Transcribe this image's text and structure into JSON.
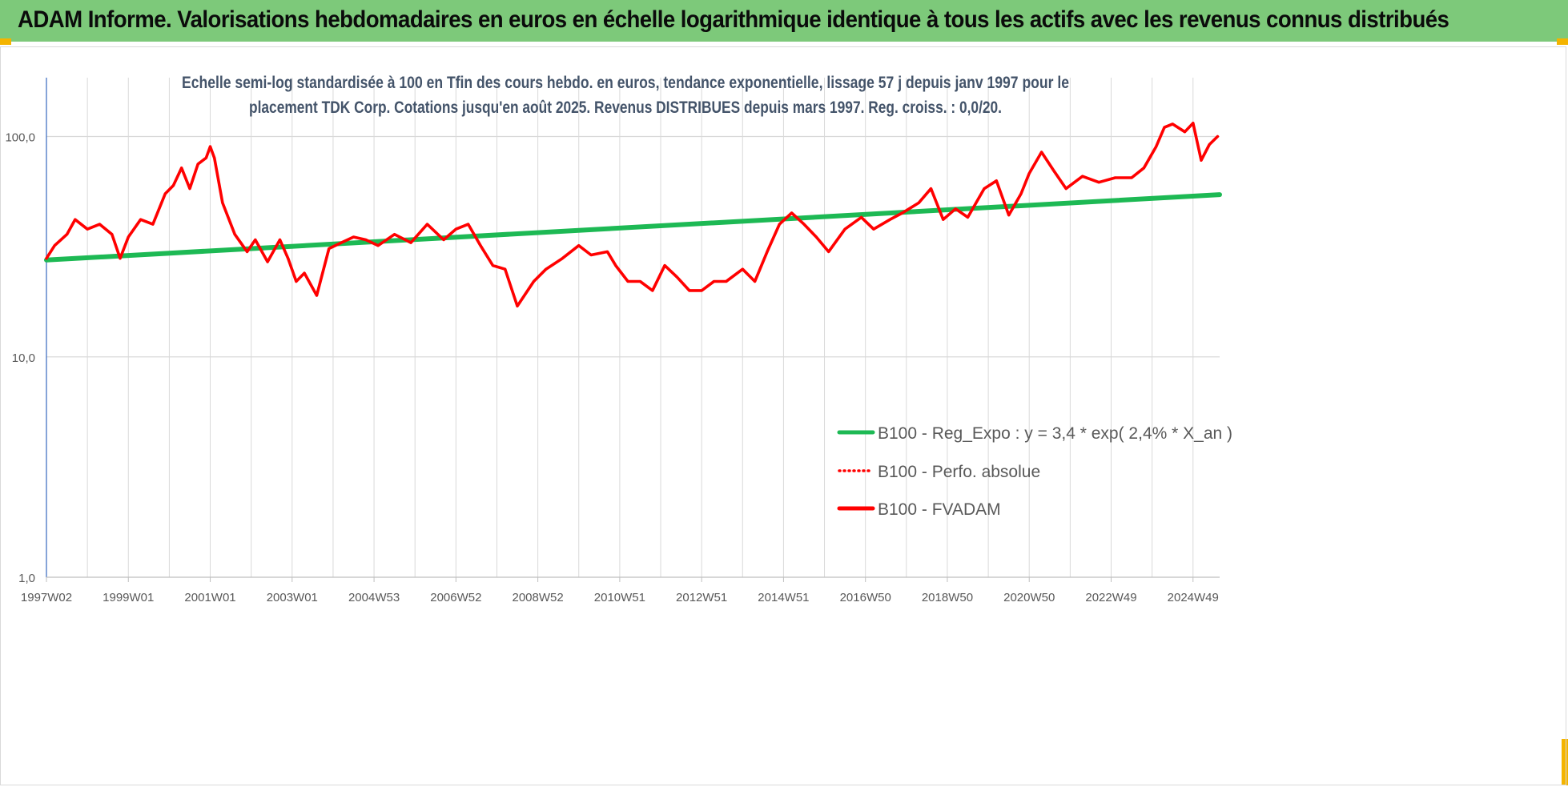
{
  "header": {
    "title": "ADAM Informe. Valorisations hebdomadaires en euros en échelle logarithmique identique à tous les actifs avec les revenus connus distribués"
  },
  "colors": {
    "banner": "#7dc97a",
    "corner_marks": "#f4b400",
    "trend": "#1db954",
    "fvadam": "#ff0000",
    "axis_text": "#595959",
    "grid": "#d9d9d9"
  },
  "chart_data": {
    "type": "line",
    "title_lines": [
      "Echelle semi-log standardisée à 100 en Tfin des cours hebdo. en euros, tendance exponentielle, lissage 57 j depuis janv 1997 pour le",
      "placement TDK Corp. Cotations jusqu'en août 2025. Revenus DISTRIBUES depuis mars 1997. Reg. croiss. : 0,0/20."
    ],
    "y_scale": "log",
    "ylim": [
      1,
      185
    ],
    "y_ticks": [
      1,
      10,
      100
    ],
    "y_tick_labels": [
      "1,0",
      "10,0",
      "100,0"
    ],
    "x_range": [
      1997.0,
      2025.65
    ],
    "x_ticks": [
      1997.0,
      1999.0,
      2001.0,
      2003.0,
      2005.0,
      2007.0,
      2009.0,
      2011.0,
      2013.0,
      2015.0,
      2017.0,
      2019.0,
      2021.0,
      2023.0,
      2025.0
    ],
    "x_tick_labels": [
      "1997W02",
      "1999W01",
      "2001W01",
      "2003W01",
      "2004W53",
      "2006W52",
      "2008W52",
      "2010W51",
      "2012W51",
      "2014W51",
      "2016W50",
      "2018W50",
      "2020W50",
      "2022W49",
      "2024W49"
    ],
    "grid": "vertical and horizontal",
    "legend_position": "lower-right",
    "series": [
      {
        "name": "B100 - Reg_Expo : y = 3,4 * exp( 2,4% *  X_an )",
        "style": "solid-thick",
        "color": "#1db954",
        "x": [
          1997.0,
          2025.65
        ],
        "y": [
          27.5,
          54.5
        ]
      },
      {
        "name": "B100 - Perfo. absolue",
        "style": "dotted",
        "color": "#ff0000",
        "x": [],
        "y": []
      },
      {
        "name": "B100 - FVADAM",
        "style": "solid-thick",
        "color": "#ff0000",
        "x": [
          1997.0,
          1997.2,
          1997.5,
          1997.7,
          1998.0,
          1998.3,
          1998.6,
          1998.8,
          1999.0,
          1999.3,
          1999.6,
          1999.9,
          2000.1,
          2000.3,
          2000.5,
          2000.7,
          2000.9,
          2001.0,
          2001.1,
          2001.3,
          2001.6,
          2001.9,
          2002.1,
          2002.4,
          2002.7,
          2002.9,
          2003.1,
          2003.3,
          2003.6,
          2003.9,
          2004.2,
          2004.5,
          2004.8,
          2005.1,
          2005.5,
          2005.9,
          2006.3,
          2006.7,
          2007.0,
          2007.3,
          2007.6,
          2007.9,
          2008.2,
          2008.5,
          2008.9,
          2009.2,
          2009.6,
          2010.0,
          2010.3,
          2010.7,
          2010.9,
          2011.2,
          2011.5,
          2011.8,
          2012.1,
          2012.4,
          2012.7,
          2013.0,
          2013.3,
          2013.6,
          2014.0,
          2014.3,
          2014.6,
          2014.9,
          2015.2,
          2015.5,
          2015.8,
          2016.1,
          2016.5,
          2016.9,
          2017.2,
          2017.6,
          2017.9,
          2018.3,
          2018.6,
          2018.9,
          2019.2,
          2019.5,
          2019.9,
          2020.2,
          2020.5,
          2020.8,
          2021.0,
          2021.3,
          2021.6,
          2021.9,
          2022.3,
          2022.7,
          2023.1,
          2023.5,
          2023.8,
          2024.1,
          2024.3,
          2024.5,
          2024.8,
          2025.0,
          2025.2,
          2025.4,
          2025.6
        ],
        "y": [
          28,
          32,
          36,
          42,
          38,
          40,
          36,
          28,
          35,
          42,
          40,
          55,
          60,
          72,
          58,
          75,
          80,
          90,
          80,
          50,
          36,
          30,
          34,
          27,
          34,
          28,
          22,
          24,
          19,
          31,
          33,
          35,
          34,
          32,
          36,
          33,
          40,
          34,
          38,
          40,
          32,
          26,
          25,
          17,
          22,
          25,
          28,
          32,
          29,
          30,
          26,
          22,
          22,
          20,
          26,
          23,
          20,
          20,
          22,
          22,
          25,
          22,
          30,
          40,
          45,
          40,
          35,
          30,
          38,
          43,
          38,
          42,
          45,
          50,
          58,
          42,
          47,
          43,
          58,
          63,
          44,
          55,
          68,
          85,
          70,
          58,
          66,
          62,
          65,
          65,
          72,
          90,
          110,
          114,
          105,
          115,
          78,
          92,
          100
        ]
      }
    ]
  }
}
